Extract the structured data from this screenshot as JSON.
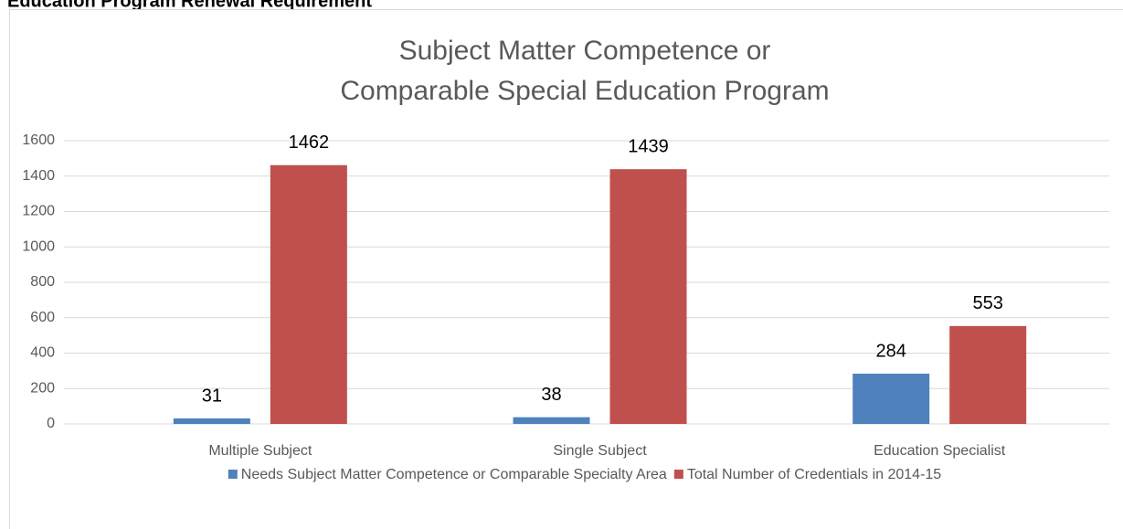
{
  "heading": "Education Program Renewal Requirement",
  "chart_data": {
    "type": "bar",
    "title": [
      "Subject Matter Competence or",
      "Comparable Special Education Program"
    ],
    "categories": [
      "Multiple Subject",
      "Single Subject",
      "Education Specialist"
    ],
    "series": [
      {
        "name": "Needs Subject Matter Competence or Comparable Specialty Area",
        "color": "#4f81bd",
        "values": [
          31,
          38,
          284
        ]
      },
      {
        "name": "Total Number of Credentials in 2014-15",
        "color": "#c0504d",
        "values": [
          1462,
          1439,
          553
        ]
      }
    ],
    "ylim": [
      0,
      1600
    ],
    "yticks": [
      0,
      200,
      400,
      600,
      800,
      1000,
      1200,
      1400,
      1600
    ],
    "grid": true,
    "legend": "bottom"
  }
}
